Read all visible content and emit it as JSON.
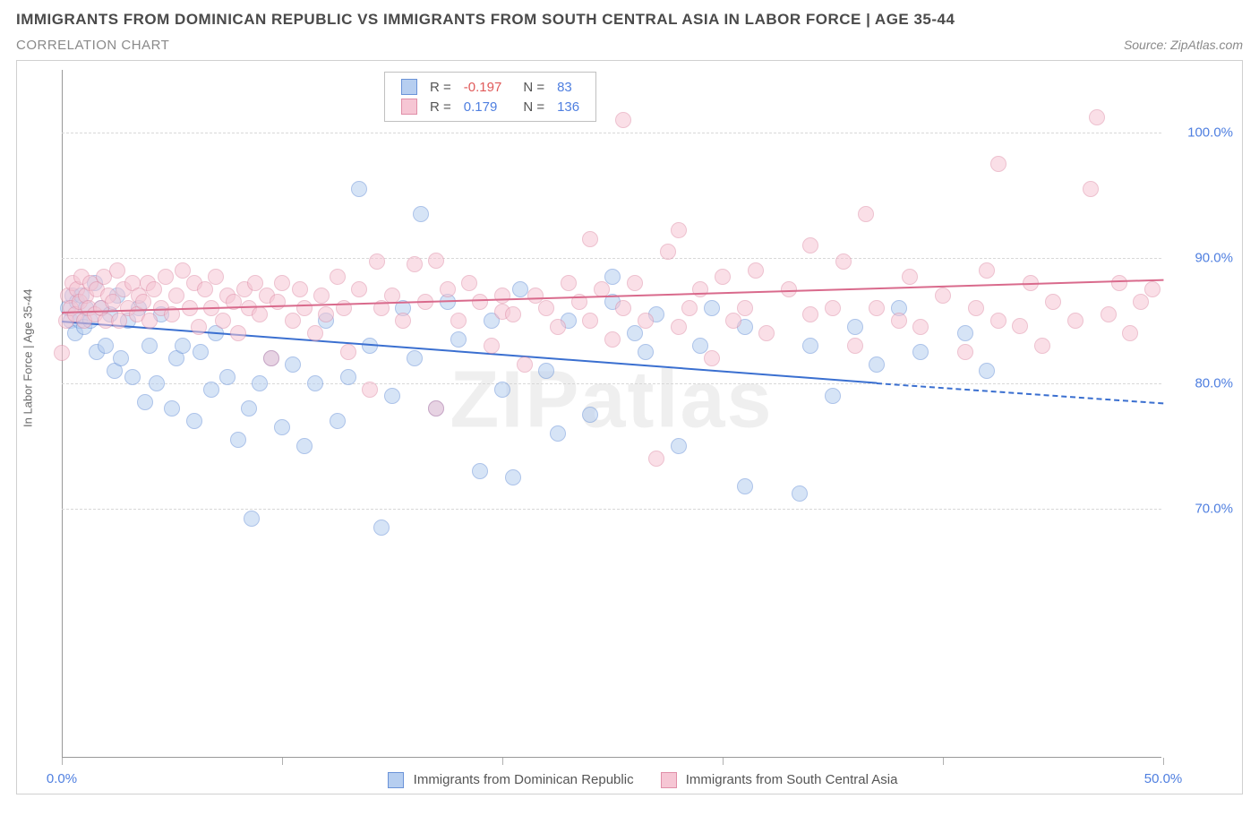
{
  "title": "IMMIGRANTS FROM DOMINICAN REPUBLIC VS IMMIGRANTS FROM SOUTH CENTRAL ASIA IN LABOR FORCE | AGE 35-44",
  "subtitle": "CORRELATION CHART",
  "source": "Source: ZipAtlas.com",
  "watermark": "ZIPatlas",
  "chart": {
    "type": "scatter",
    "y_label": "In Labor Force | Age 35-44",
    "xlim": [
      0,
      50
    ],
    "ylim": [
      50,
      105
    ],
    "x_ticks": [
      0,
      10,
      20,
      30,
      40,
      50
    ],
    "x_tick_labels": [
      "0.0%",
      "",
      "",
      "",
      "",
      "50.0%"
    ],
    "y_ticks": [
      70,
      80,
      90,
      100
    ],
    "y_tick_labels": [
      "70.0%",
      "80.0%",
      "90.0%",
      "100.0%"
    ],
    "grid_color": "#d8d8d8",
    "axis_color": "#999999",
    "background_color": "#ffffff",
    "tick_label_color": "#4f7fe0",
    "tick_label_fontsize": 15,
    "axis_label_fontsize": 13,
    "point_radius": 9,
    "point_opacity": 0.55,
    "trend_line_width": 2
  },
  "series": [
    {
      "name": "Immigrants from Dominican Republic",
      "fill": "#b6cef0",
      "stroke": "#6a93d8",
      "line_color": "#3a6fd0",
      "R": "-0.197",
      "R_sign": "neg",
      "N": "83",
      "trend": {
        "x1": 0,
        "y1": 85.0,
        "x2": 37,
        "y2": 80.1,
        "x2_ext": 50,
        "y2_ext": 78.5
      },
      "points": [
        [
          0.3,
          86
        ],
        [
          0.4,
          85
        ],
        [
          0.5,
          87
        ],
        [
          0.6,
          84
        ],
        [
          0.7,
          86.5
        ],
        [
          0.8,
          85
        ],
        [
          0.9,
          87
        ],
        [
          1,
          84.5
        ],
        [
          1.1,
          86
        ],
        [
          1.3,
          85
        ],
        [
          1.5,
          88
        ],
        [
          1.6,
          82.5
        ],
        [
          1.8,
          86
        ],
        [
          2,
          83
        ],
        [
          2.2,
          85.5
        ],
        [
          2.4,
          81
        ],
        [
          2.5,
          87
        ],
        [
          2.7,
          82
        ],
        [
          3,
          85
        ],
        [
          3.2,
          80.5
        ],
        [
          3.5,
          86
        ],
        [
          3.8,
          78.5
        ],
        [
          4,
          83
        ],
        [
          4.3,
          80
        ],
        [
          4.5,
          85.5
        ],
        [
          5,
          78
        ],
        [
          5.2,
          82
        ],
        [
          5.5,
          83
        ],
        [
          6,
          77
        ],
        [
          6.3,
          82.5
        ],
        [
          6.8,
          79.5
        ],
        [
          7,
          84
        ],
        [
          7.5,
          80.5
        ],
        [
          8,
          75.5
        ],
        [
          8.5,
          78
        ],
        [
          8.6,
          69.2
        ],
        [
          9,
          80
        ],
        [
          9.5,
          82
        ],
        [
          10,
          76.5
        ],
        [
          10.5,
          81.5
        ],
        [
          11,
          75
        ],
        [
          11.5,
          80
        ],
        [
          12,
          85
        ],
        [
          12.5,
          77
        ],
        [
          13,
          80.5
        ],
        [
          13.5,
          95.5
        ],
        [
          14,
          83
        ],
        [
          14.5,
          68.5
        ],
        [
          15,
          79
        ],
        [
          15.5,
          86
        ],
        [
          16,
          82
        ],
        [
          16.3,
          93.5
        ],
        [
          17,
          78
        ],
        [
          17.5,
          86.5
        ],
        [
          18,
          83.5
        ],
        [
          19,
          73
        ],
        [
          19.5,
          85
        ],
        [
          20,
          79.5
        ],
        [
          20.5,
          72.5
        ],
        [
          20.8,
          87.5
        ],
        [
          22,
          81
        ],
        [
          22.5,
          76
        ],
        [
          23,
          85
        ],
        [
          24,
          77.5
        ],
        [
          25,
          86.5
        ],
        [
          25,
          88.5
        ],
        [
          26,
          84
        ],
        [
          26.5,
          82.5
        ],
        [
          27,
          85.5
        ],
        [
          28,
          75
        ],
        [
          29,
          83
        ],
        [
          29.5,
          86
        ],
        [
          31,
          84.5
        ],
        [
          31,
          71.8
        ],
        [
          33.5,
          71.2
        ],
        [
          34,
          83
        ],
        [
          35,
          79
        ],
        [
          36,
          84.5
        ],
        [
          37,
          81.5
        ],
        [
          38,
          86
        ],
        [
          39,
          82.5
        ],
        [
          41,
          84
        ],
        [
          42,
          81
        ]
      ]
    },
    {
      "name": "Immigrants from South Central Asia",
      "fill": "#f6c6d4",
      "stroke": "#e08fa8",
      "line_color": "#d96a8c",
      "R": "0.179",
      "R_sign": "pos",
      "N": "136",
      "trend": {
        "x1": 0,
        "y1": 85.7,
        "x2": 50,
        "y2": 88.3
      },
      "points": [
        [
          0,
          82.4
        ],
        [
          0.2,
          85
        ],
        [
          0.3,
          87
        ],
        [
          0.4,
          86
        ],
        [
          0.5,
          88
        ],
        [
          0.6,
          85.5
        ],
        [
          0.7,
          87.5
        ],
        [
          0.8,
          86.5
        ],
        [
          0.9,
          88.5
        ],
        [
          1,
          85
        ],
        [
          1.1,
          87
        ],
        [
          1.2,
          86
        ],
        [
          1.3,
          88
        ],
        [
          1.5,
          85.5
        ],
        [
          1.6,
          87.5
        ],
        [
          1.8,
          86
        ],
        [
          1.9,
          88.5
        ],
        [
          2,
          85
        ],
        [
          2.1,
          87
        ],
        [
          2.3,
          86.5
        ],
        [
          2.5,
          89
        ],
        [
          2.6,
          85
        ],
        [
          2.8,
          87.5
        ],
        [
          3,
          86
        ],
        [
          3.2,
          88
        ],
        [
          3.4,
          85.5
        ],
        [
          3.5,
          87
        ],
        [
          3.7,
          86.5
        ],
        [
          3.9,
          88
        ],
        [
          4,
          85
        ],
        [
          4.2,
          87.5
        ],
        [
          4.5,
          86
        ],
        [
          4.7,
          88.5
        ],
        [
          5,
          85.5
        ],
        [
          5.2,
          87
        ],
        [
          5.5,
          89
        ],
        [
          5.8,
          86
        ],
        [
          6,
          88
        ],
        [
          6.2,
          84.5
        ],
        [
          6.5,
          87.5
        ],
        [
          6.8,
          86
        ],
        [
          7,
          88.5
        ],
        [
          7.3,
          85
        ],
        [
          7.5,
          87
        ],
        [
          7.8,
          86.5
        ],
        [
          8,
          84
        ],
        [
          8.3,
          87.5
        ],
        [
          8.5,
          86
        ],
        [
          8.8,
          88
        ],
        [
          9,
          85.5
        ],
        [
          9.3,
          87
        ],
        [
          9.5,
          82
        ],
        [
          9.8,
          86.5
        ],
        [
          10,
          88
        ],
        [
          10.5,
          85
        ],
        [
          10.8,
          87.5
        ],
        [
          11,
          86
        ],
        [
          11.5,
          84
        ],
        [
          11.8,
          87
        ],
        [
          12,
          85.5
        ],
        [
          12.5,
          88.5
        ],
        [
          12.8,
          86
        ],
        [
          13,
          82.5
        ],
        [
          13.5,
          87.5
        ],
        [
          14,
          79.5
        ],
        [
          14.5,
          86
        ],
        [
          14.3,
          89.7
        ],
        [
          15,
          87
        ],
        [
          15.5,
          85
        ],
        [
          16,
          89.5
        ],
        [
          16.5,
          86.5
        ],
        [
          17,
          78
        ],
        [
          17,
          89.8
        ],
        [
          17.5,
          87.5
        ],
        [
          18,
          85
        ],
        [
          18.5,
          88
        ],
        [
          19,
          86.5
        ],
        [
          19.5,
          83
        ],
        [
          20,
          85.7
        ],
        [
          20,
          87
        ],
        [
          20.5,
          85.5
        ],
        [
          21,
          81.5
        ],
        [
          21.5,
          87
        ],
        [
          22,
          86
        ],
        [
          22.5,
          84.5
        ],
        [
          23,
          88
        ],
        [
          23.5,
          86.5
        ],
        [
          24,
          85
        ],
        [
          24,
          91.5
        ],
        [
          24.5,
          87.5
        ],
        [
          25,
          83.5
        ],
        [
          25.5,
          86
        ],
        [
          25.5,
          101
        ],
        [
          26,
          88
        ],
        [
          26.5,
          85
        ],
        [
          27,
          74
        ],
        [
          27.5,
          90.5
        ],
        [
          28,
          84.5
        ],
        [
          28,
          92.2
        ],
        [
          28.5,
          86
        ],
        [
          29,
          87.5
        ],
        [
          29.5,
          82
        ],
        [
          30,
          88.5
        ],
        [
          30.5,
          85
        ],
        [
          31,
          86
        ],
        [
          31.5,
          89
        ],
        [
          32,
          84
        ],
        [
          33,
          87.5
        ],
        [
          34,
          85.5
        ],
        [
          34,
          91
        ],
        [
          35,
          86
        ],
        [
          35.5,
          89.7
        ],
        [
          36,
          83
        ],
        [
          36.5,
          93.5
        ],
        [
          37,
          86
        ],
        [
          38,
          85
        ],
        [
          38.5,
          88.5
        ],
        [
          39,
          84.5
        ],
        [
          40,
          87
        ],
        [
          41,
          82.5
        ],
        [
          41.5,
          86
        ],
        [
          42,
          89
        ],
        [
          42.5,
          85
        ],
        [
          42.5,
          97.5
        ],
        [
          43.5,
          84.6
        ],
        [
          44,
          88
        ],
        [
          44.5,
          83
        ],
        [
          45,
          86.5
        ],
        [
          46,
          85
        ],
        [
          46.7,
          95.5
        ],
        [
          47,
          101.2
        ],
        [
          47.5,
          85.5
        ],
        [
          48,
          88
        ],
        [
          48.5,
          84
        ],
        [
          49,
          86.5
        ],
        [
          49.5,
          87.5
        ]
      ]
    }
  ],
  "legend": {
    "cols": [
      "",
      "R =",
      "",
      "N =",
      ""
    ]
  }
}
